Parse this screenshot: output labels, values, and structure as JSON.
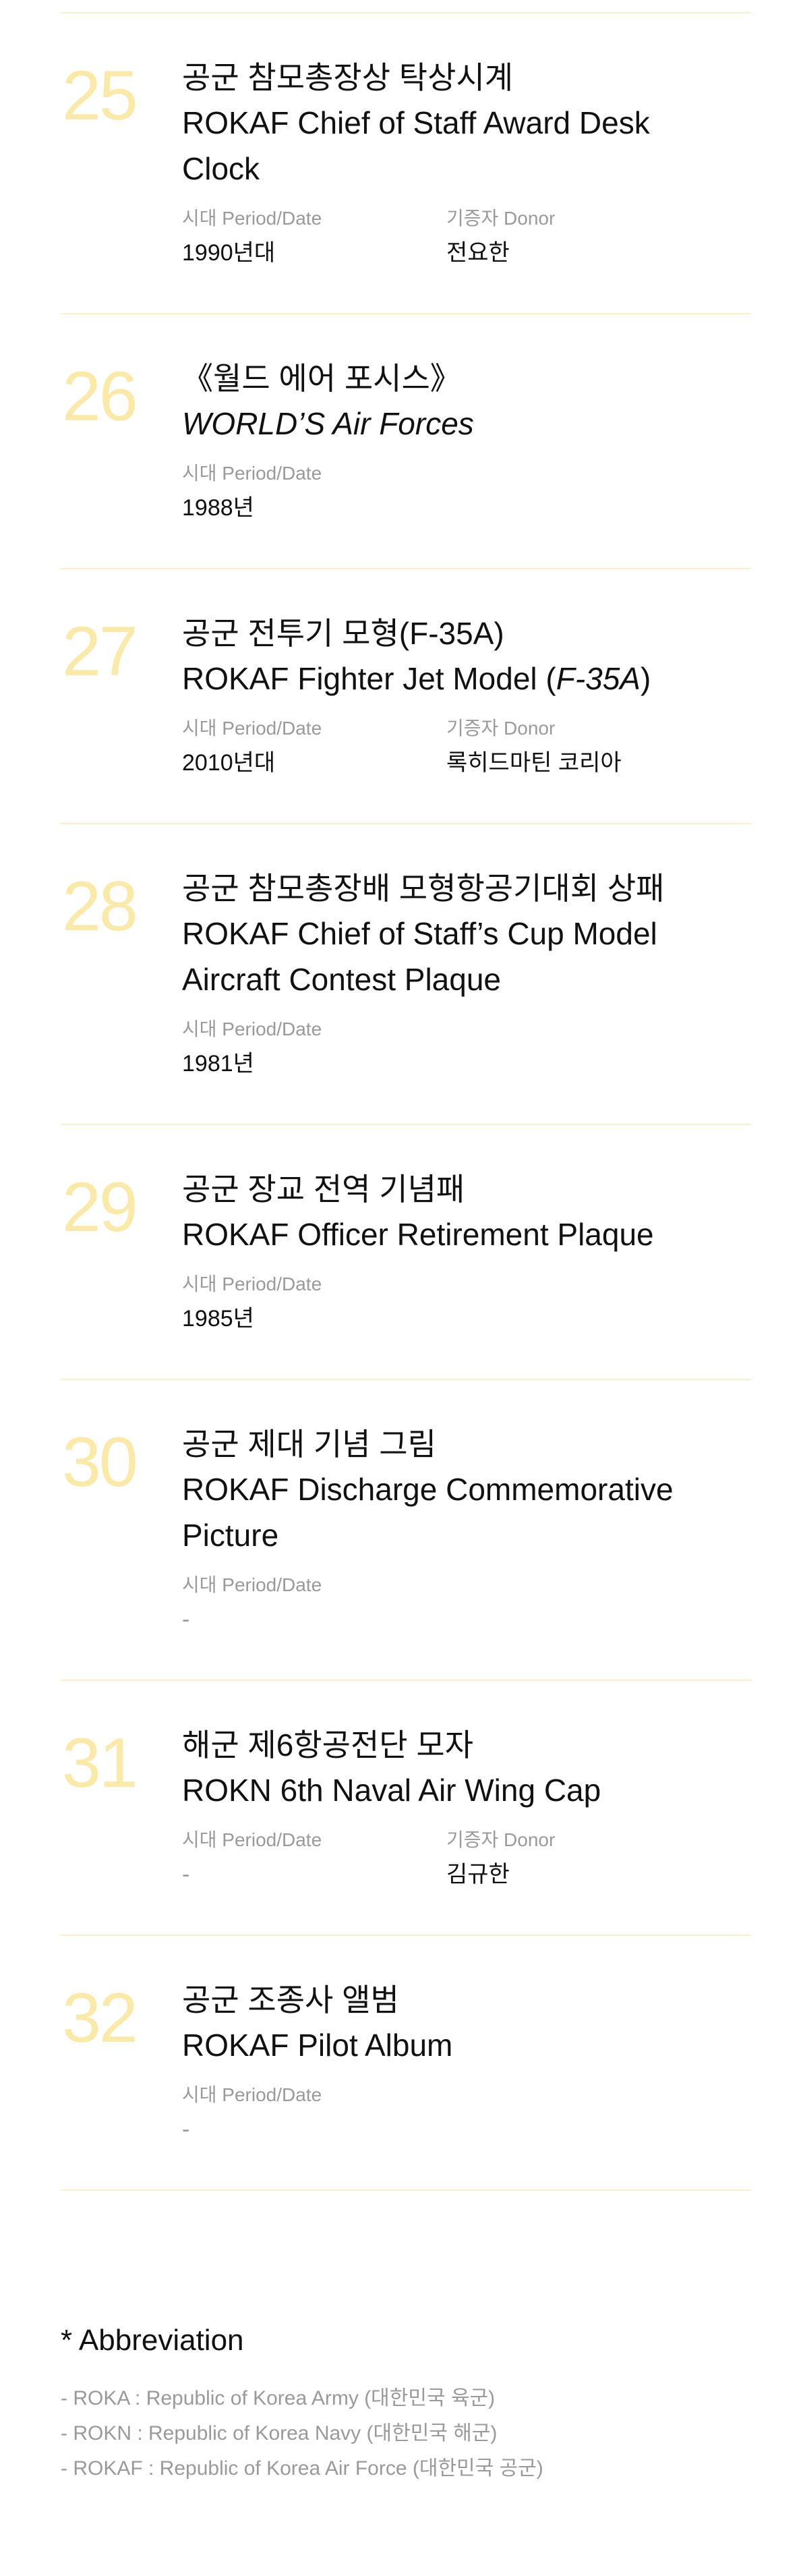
{
  "items": [
    {
      "num": "25",
      "ko": "공군 참모총장상 탁상시계",
      "en": [
        "ROKAF Chief of Staff Award Desk",
        "Clock"
      ],
      "period_label": "시대 Period/Date",
      "period": "1990년대",
      "donor_label": "기증자 Donor",
      "donor": "전요한"
    },
    {
      "num": "26",
      "ko": "《월드 에어 포시스》",
      "en_italic": "WORLD’S Air Forces",
      "period_label": "시대 Period/Date",
      "period": "1988년"
    },
    {
      "num": "27",
      "ko": "공군 전투기 모형(F-35A)",
      "en_pre": "ROKAF Fighter Jet Model (",
      "en_it": "F-35A",
      "en_post": ")",
      "period_label": "시대 Period/Date",
      "period": "2010년대",
      "donor_label": "기증자 Donor",
      "donor": "록히드마틴 코리아"
    },
    {
      "num": "28",
      "ko": "공군 참모총장배 모형항공기대회 상패",
      "en": [
        "ROKAF Chief of Staff’s Cup Model",
        "Aircraft Contest Plaque"
      ],
      "period_label": "시대 Period/Date",
      "period": "1981년"
    },
    {
      "num": "29",
      "ko": "공군 장교 전역 기념패",
      "en": [
        "ROKAF Officer Retirement Plaque"
      ],
      "period_label": "시대 Period/Date",
      "period": "1985년"
    },
    {
      "num": "30",
      "ko": "공군 제대 기념 그림",
      "en": [
        "ROKAF Discharge Commemorative",
        "Picture"
      ],
      "period_label": "시대 Period/Date",
      "period": "-"
    },
    {
      "num": "31",
      "ko": "해군 제6항공전단 모자",
      "en": [
        "ROKN 6th Naval Air Wing Cap"
      ],
      "period_label": "시대 Period/Date",
      "period": "-",
      "donor_label": "기증자 Donor",
      "donor": "김규한"
    },
    {
      "num": "32",
      "ko": "공군 조종사 앨범",
      "en": [
        "ROKAF Pilot Album"
      ],
      "period_label": "시대 Period/Date",
      "period": "-"
    }
  ],
  "abbreviation": {
    "title": "* Abbreviation",
    "lines": [
      "- ROKA : Republic of Korea Army (대한민국 육군)",
      "- ROKN : Republic of Korea Navy (대한민국 해군)",
      "- ROKAF : Republic of Korea Air Force (대한민국 공군)"
    ]
  }
}
